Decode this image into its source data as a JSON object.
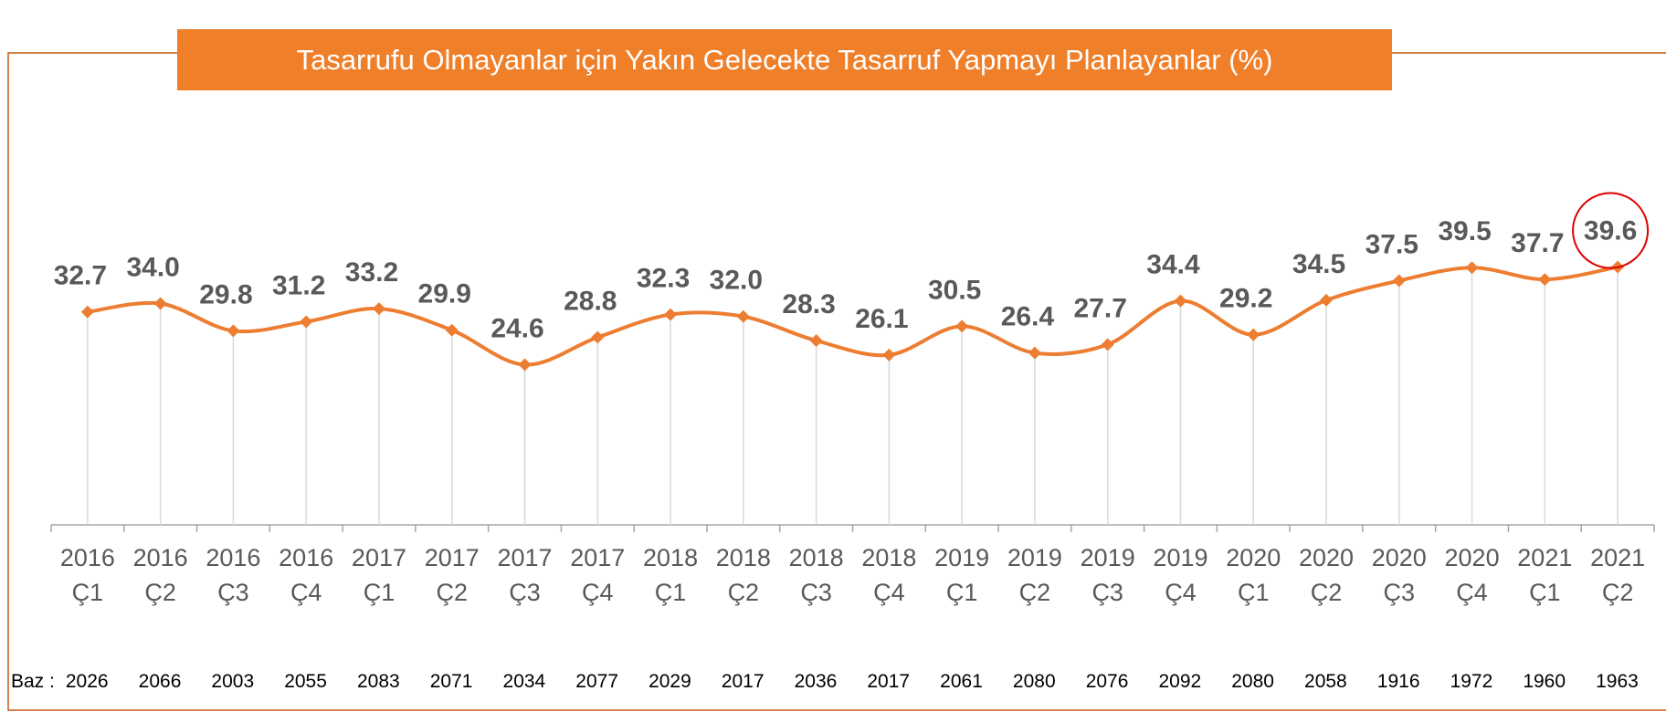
{
  "chart_data": {
    "type": "line",
    "title": "Tasarrufu Olmayanlar için Yakın Gelecekte Tasarruf Yapmayı Planlayanlar (%)",
    "categories": [
      "2016 Ç1",
      "2016 Ç2",
      "2016 Ç3",
      "2016 Ç4",
      "2017 Ç1",
      "2017 Ç2",
      "2017 Ç3",
      "2017 Ç4",
      "2018 Ç1",
      "2018 Ç2",
      "2018 Ç3",
      "2018 Ç4",
      "2019 Ç1",
      "2019 Ç2",
      "2019 Ç3",
      "2019 Ç4",
      "2020 Ç1",
      "2020 Ç2",
      "2020 Ç3",
      "2020 Ç4",
      "2021 Ç1",
      "2021 Ç2"
    ],
    "values": [
      32.7,
      34.0,
      29.8,
      31.2,
      33.2,
      29.9,
      24.6,
      28.8,
      32.3,
      32.0,
      28.3,
      26.1,
      30.5,
      26.4,
      27.7,
      34.4,
      29.2,
      34.5,
      37.5,
      39.5,
      37.7,
      39.6
    ],
    "value_labels": [
      "32.7",
      "34.0",
      "29.8",
      "31.2",
      "33.2",
      "29.9",
      "24.6",
      "28.8",
      "32.3",
      "32.0",
      "28.3",
      "26.1",
      "30.5",
      "26.4",
      "27.7",
      "34.4",
      "29.2",
      "34.5",
      "37.5",
      "39.5",
      "37.7",
      "39.6"
    ],
    "color": "#ed7d31",
    "ylim": [
      0,
      60
    ],
    "base_label": "Baz :",
    "base_values": [
      2026,
      2066,
      2003,
      2055,
      2083,
      2071,
      2034,
      2077,
      2029,
      2017,
      2036,
      2017,
      2061,
      2080,
      2076,
      2092,
      2080,
      2058,
      1916,
      1972,
      1960,
      1963
    ]
  }
}
